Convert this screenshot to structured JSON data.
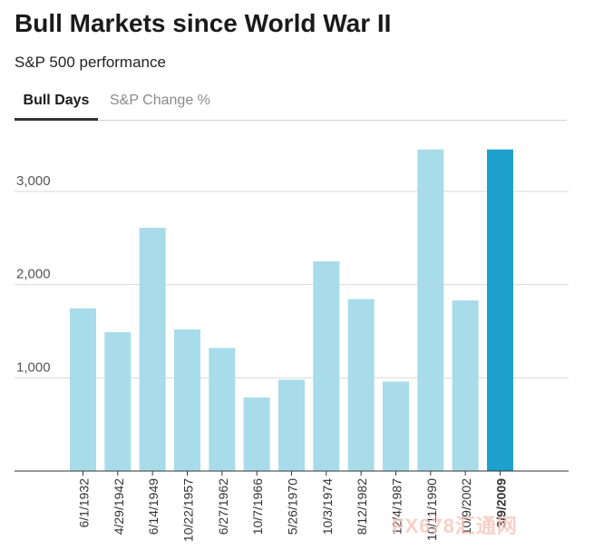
{
  "header": {
    "title": "Bull Markets since World War II",
    "subtitle": "S&P 500 performance"
  },
  "tabs": [
    {
      "label": "Bull Days",
      "active": true
    },
    {
      "label": "S&P Change %",
      "active": false
    }
  ],
  "watermark": "FX678汇通网",
  "colors": {
    "bar": "#a8dcea",
    "highlight": "#1ea0cd",
    "grid": "#d9d9d9",
    "axis": "#333333"
  },
  "chart_data": {
    "type": "bar",
    "title": "",
    "xlabel": "",
    "ylabel": "",
    "ylim": [
      0,
      3800
    ],
    "yticks": [
      1000,
      2000,
      3000
    ],
    "ytick_labels": [
      "1,000",
      "2,000",
      "3,000"
    ],
    "grid": true,
    "highlight_category": "3/9/2009",
    "categories": [
      "6/1/1932",
      "4/29/1942",
      "6/14/1949",
      "10/22/1957",
      "6/27/1962",
      "10/7/1966",
      "5/26/1970",
      "10/3/1974",
      "8/12/1982",
      "12/4/1987",
      "10/11/1990",
      "10/9/2002",
      "3/9/2009"
    ],
    "values": [
      1745,
      1490,
      2610,
      1520,
      1320,
      790,
      980,
      2250,
      1845,
      960,
      3450,
      1830,
      3450
    ]
  }
}
